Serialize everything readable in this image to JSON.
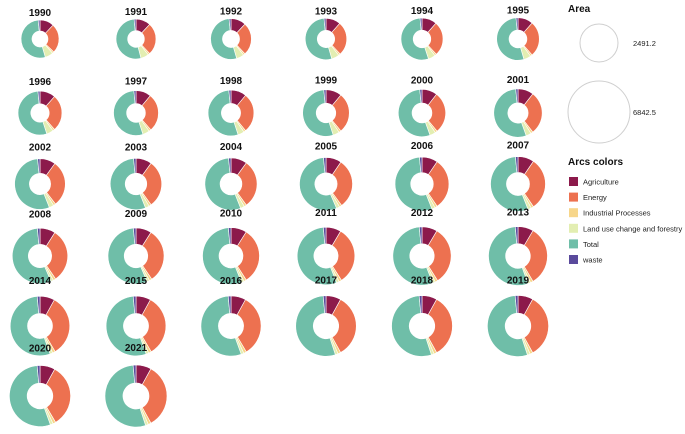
{
  "chart_data": {
    "type": "donut-grid",
    "colors": {
      "Agriculture": "#8c1a4b",
      "Energy": "#ed7150",
      "Industrial Processes": "#f7d68a",
      "Land use change and forestry": "#e3eeb2",
      "Total": "#6fbea8",
      "waste": "#5a4a9c"
    },
    "size_legend": {
      "title": "Area",
      "values": [
        2491.2,
        6842.5
      ],
      "labels": [
        "2491.2",
        "6842.5"
      ]
    },
    "arc_legend": {
      "title": "Arcs colors",
      "items": [
        "Agriculture",
        "Energy",
        "Industrial Processes",
        "Land use change and forestry",
        "Total",
        "waste"
      ]
    },
    "series_order": [
      "Agriculture",
      "Energy",
      "Industrial Processes",
      "Land use change and forestry",
      "Total",
      "waste"
    ],
    "years": [
      {
        "year": "1990",
        "area": 2491.2,
        "values": [
          12,
          25,
          1.5,
          7,
          53,
          1.5
        ]
      },
      {
        "year": "1991",
        "area": 2520,
        "values": [
          12,
          26,
          1.5,
          6.5,
          52.5,
          1.5
        ]
      },
      {
        "year": "1992",
        "area": 2550,
        "values": [
          12,
          26,
          1.5,
          6,
          53,
          1.5
        ]
      },
      {
        "year": "1993",
        "area": 2580,
        "values": [
          11.5,
          26.5,
          1.5,
          6,
          53,
          1.5
        ]
      },
      {
        "year": "1994",
        "area": 2610,
        "values": [
          11.5,
          26.5,
          1.5,
          5.5,
          53.5,
          1.5
        ]
      },
      {
        "year": "1995",
        "area": 2650,
        "values": [
          11.5,
          27,
          1.5,
          5.5,
          53,
          1.5
        ]
      },
      {
        "year": "1996",
        "area": 2750,
        "values": [
          11.5,
          27,
          1.5,
          5,
          53.5,
          1.5
        ]
      },
      {
        "year": "1997",
        "area": 2850,
        "values": [
          11,
          27.5,
          1.5,
          5,
          53.5,
          1.5
        ]
      },
      {
        "year": "1998",
        "area": 2950,
        "values": [
          11,
          28,
          1.5,
          4.5,
          53.5,
          1.5
        ]
      },
      {
        "year": "1999",
        "area": 3050,
        "values": [
          11,
          28,
          1.5,
          4.5,
          53.5,
          1.5
        ]
      },
      {
        "year": "2000",
        "area": 3150,
        "values": [
          10.5,
          28.5,
          1.5,
          4,
          54,
          1.5
        ]
      },
      {
        "year": "2001",
        "area": 3300,
        "values": [
          10.5,
          29,
          1.5,
          3.5,
          54,
          1.5
        ]
      },
      {
        "year": "2002",
        "area": 3700,
        "values": [
          10,
          29.5,
          1.5,
          3,
          54.5,
          1.5
        ]
      },
      {
        "year": "2003",
        "area": 3850,
        "values": [
          10,
          30,
          1.5,
          2.5,
          54.5,
          1.5
        ]
      },
      {
        "year": "2004",
        "area": 4000,
        "values": [
          10,
          30,
          1.5,
          2.5,
          54.5,
          1.5
        ]
      },
      {
        "year": "2005",
        "area": 4200,
        "values": [
          9.5,
          30.5,
          1.5,
          2,
          55,
          1.5
        ]
      },
      {
        "year": "2006",
        "area": 4400,
        "values": [
          9.5,
          31,
          1.5,
          2,
          54.5,
          1.5
        ]
      },
      {
        "year": "2007",
        "area": 4650,
        "values": [
          9.5,
          31,
          1.5,
          2,
          54.5,
          1.5
        ]
      },
      {
        "year": "2008",
        "area": 4800,
        "values": [
          9,
          31.5,
          1.5,
          1.5,
          55,
          1.5
        ]
      },
      {
        "year": "2009",
        "area": 4950,
        "values": [
          9,
          31.5,
          1.5,
          1.5,
          55,
          1.5
        ]
      },
      {
        "year": "2010",
        "area": 5200,
        "values": [
          9,
          32,
          1.5,
          1.5,
          54.5,
          1.5
        ]
      },
      {
        "year": "2011",
        "area": 5400,
        "values": [
          8.5,
          32.5,
          1.5,
          1.5,
          54.5,
          1.5
        ]
      },
      {
        "year": "2012",
        "area": 5600,
        "values": [
          8.5,
          32.5,
          1.5,
          1.5,
          54.5,
          1.5
        ]
      },
      {
        "year": "2013",
        "area": 5800,
        "values": [
          8.5,
          33,
          1.5,
          1.5,
          54,
          1.5
        ]
      },
      {
        "year": "2014",
        "area": 6000,
        "values": [
          8,
          33.5,
          1.5,
          1.5,
          54,
          1.5
        ]
      },
      {
        "year": "2015",
        "area": 6100,
        "values": [
          8,
          33.5,
          1.5,
          1.5,
          54,
          1.5
        ]
      },
      {
        "year": "2016",
        "area": 6200,
        "values": [
          8,
          33.5,
          1.5,
          1.5,
          54,
          1.5
        ]
      },
      {
        "year": "2017",
        "area": 6350,
        "values": [
          8,
          34,
          1.5,
          1.5,
          53.5,
          1.5
        ]
      },
      {
        "year": "2018",
        "area": 6450,
        "values": [
          8,
          34,
          1.5,
          1.5,
          53.5,
          1.5
        ]
      },
      {
        "year": "2019",
        "area": 6550,
        "values": [
          8,
          34,
          1.5,
          1.5,
          53.5,
          1.5
        ]
      },
      {
        "year": "2020",
        "area": 6550,
        "values": [
          8,
          33.5,
          1.5,
          1.5,
          54,
          1.5
        ]
      },
      {
        "year": "2021",
        "area": 6842.5,
        "values": [
          8,
          34,
          1.5,
          1.5,
          53.5,
          1.5
        ]
      }
    ]
  }
}
